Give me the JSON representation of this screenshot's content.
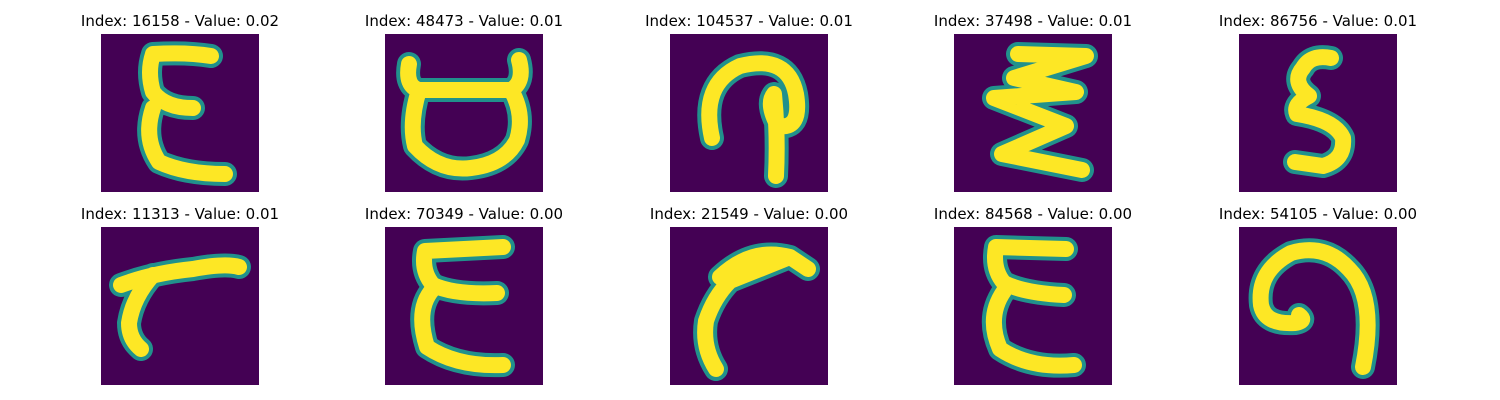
{
  "colors": {
    "background": "#440154",
    "stroke_core": "#fde725",
    "stroke_edge": "#21918c"
  },
  "panels": [
    {
      "title": "Index: 16158 - Value: 0.02",
      "glyph": "epsilon-3-like"
    },
    {
      "title": "Index: 48473 - Value: 0.01",
      "glyph": "cup-with-handles"
    },
    {
      "title": "Index: 104537 - Value: 0.01",
      "glyph": "n-curl-hook"
    },
    {
      "title": "Index: 37498 - Value: 0.01",
      "glyph": "zigzag-z"
    },
    {
      "title": "Index: 86756 - Value: 0.01",
      "glyph": "five-like"
    },
    {
      "title": "Index: 11313 - Value: 0.01",
      "glyph": "slanted-bar"
    },
    {
      "title": "Index: 70349 - Value: 0.00",
      "glyph": "epsilon-e-like"
    },
    {
      "title": "Index: 21549 - Value: 0.00",
      "glyph": "arrow-curve"
    },
    {
      "title": "Index: 84568 - Value: 0.00",
      "glyph": "epsilon-wide"
    },
    {
      "title": "Index: 54105 - Value: 0.00",
      "glyph": "hook-curl"
    }
  ]
}
